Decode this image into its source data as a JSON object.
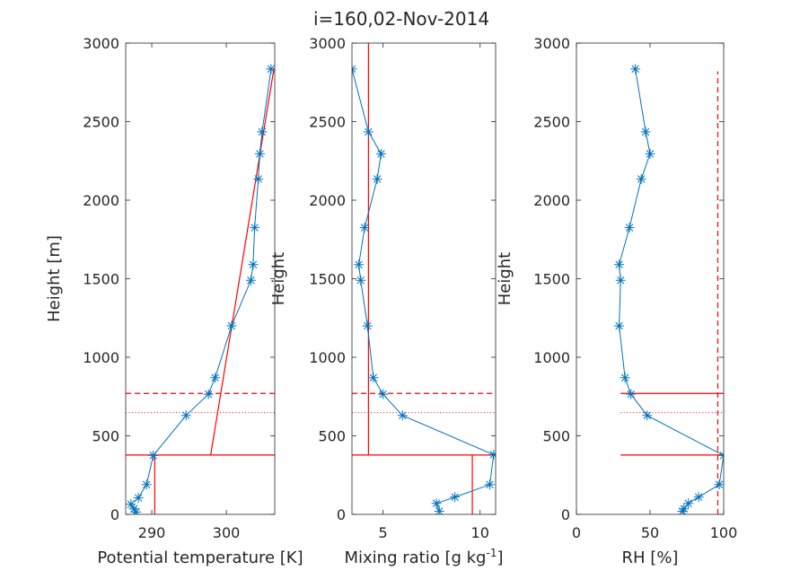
{
  "title": "i=160,02-Nov-2014",
  "colors": {
    "series": "#0072BD",
    "reference": "#FF0000",
    "axes": "#262626"
  },
  "chart_data": [
    {
      "type": "line",
      "xlabel": "Potential temperature [K]",
      "ylabel": "Height [m]",
      "xlim": [
        286.5,
        306.5
      ],
      "ylim": [
        0,
        3000
      ],
      "xticks": [
        290,
        300
      ],
      "yticks": [
        0,
        500,
        1000,
        1500,
        2000,
        2500,
        3000
      ],
      "grid": false,
      "series": [
        {
          "marker": "asterisk",
          "x": [
            287.9,
            287.6,
            287.2,
            288.2,
            289.3,
            290.2,
            294.6,
            297.6,
            298.5,
            300.7,
            303.3,
            303.6,
            303.8,
            304.3,
            304.5,
            304.8,
            306.0
          ],
          "y": [
            15,
            35,
            65,
            105,
            190,
            375,
            630,
            765,
            870,
            1200,
            1490,
            1590,
            1825,
            2135,
            2295,
            2435,
            2835
          ]
        }
      ],
      "reference_lines": [
        {
          "style": "solid",
          "x": [
            286.5,
            306.5
          ],
          "y": [
            378,
            378
          ]
        },
        {
          "style": "solid",
          "x": [
            290.4,
            290.4
          ],
          "y": [
            0,
            378
          ]
        },
        {
          "style": "solid",
          "x": [
            297.9,
            306.4
          ],
          "y": [
            378,
            2840
          ]
        },
        {
          "style": "dashed",
          "x": [
            286.5,
            306.5
          ],
          "y": [
            770,
            770
          ]
        },
        {
          "style": "dotted",
          "x": [
            286.5,
            306.5
          ],
          "y": [
            648,
            648
          ]
        }
      ]
    },
    {
      "type": "line",
      "xlabel": "Mixing ratio [g kg",
      "xlabel_superscript": "-1",
      "xlabel_suffix": "]",
      "ylabel": "Height",
      "xlim": [
        3.4,
        10.8
      ],
      "ylim": [
        0,
        3000
      ],
      "xticks": [
        5,
        10
      ],
      "yticks": [
        0,
        500,
        1000,
        1500,
        2000,
        2500,
        3000
      ],
      "grid": false,
      "series": [
        {
          "marker": "asterisk",
          "x": [
            7.9,
            7.75,
            8.7,
            10.5,
            10.7,
            6.0,
            5.0,
            4.5,
            4.2,
            3.85,
            3.75,
            4.05,
            4.7,
            4.9,
            4.25,
            3.4
          ],
          "y": [
            20,
            70,
            110,
            190,
            380,
            630,
            765,
            870,
            1200,
            1490,
            1590,
            1825,
            2135,
            2295,
            2435,
            2835
          ]
        }
      ],
      "reference_lines": [
        {
          "style": "solid",
          "x": [
            3.4,
            10.8
          ],
          "y": [
            378,
            378
          ]
        },
        {
          "style": "solid",
          "x": [
            4.25,
            4.25
          ],
          "y": [
            378,
            3000
          ]
        },
        {
          "style": "solid",
          "x": [
            9.6,
            9.6
          ],
          "y": [
            0,
            378
          ]
        },
        {
          "style": "dashed",
          "x": [
            3.4,
            10.8
          ],
          "y": [
            770,
            770
          ]
        },
        {
          "style": "dotted",
          "x": [
            3.4,
            10.8
          ],
          "y": [
            648,
            648
          ]
        }
      ]
    },
    {
      "type": "line",
      "xlabel": "RH [%]",
      "ylabel": "Height",
      "xlim": [
        0,
        100
      ],
      "ylim": [
        0,
        3000
      ],
      "xticks": [
        0,
        50,
        100
      ],
      "yticks": [
        0,
        500,
        1000,
        1500,
        2000,
        2500,
        3000
      ],
      "grid": false,
      "series": [
        {
          "marker": "asterisk",
          "x": [
            72,
            73,
            76,
            83,
            97,
            100,
            48,
            37,
            33,
            29,
            30,
            29,
            36,
            44,
            50,
            47,
            40
          ],
          "y": [
            20,
            35,
            70,
            110,
            190,
            375,
            630,
            765,
            870,
            1200,
            1490,
            1590,
            1825,
            2135,
            2295,
            2435,
            2835
          ]
        }
      ],
      "reference_lines": [
        {
          "style": "solid",
          "x": [
            30,
            100
          ],
          "y": [
            378,
            378
          ]
        },
        {
          "style": "solid",
          "x": [
            30,
            100
          ],
          "y": [
            770,
            770
          ]
        },
        {
          "style": "dotted",
          "x": [
            30,
            100
          ],
          "y": [
            648,
            648
          ]
        },
        {
          "style": "dashed",
          "x": [
            96,
            96
          ],
          "y": [
            0,
            2820
          ]
        }
      ]
    }
  ]
}
